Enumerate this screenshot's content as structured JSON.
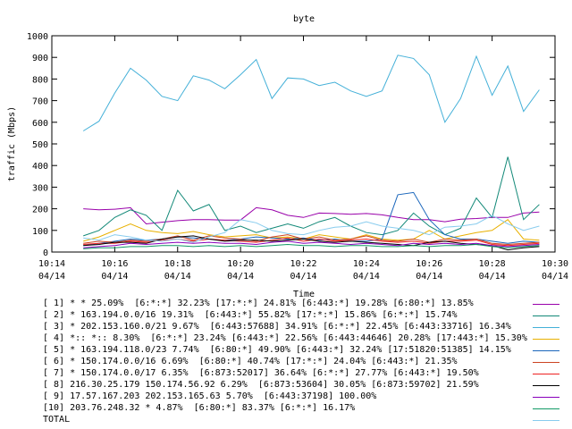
{
  "chart_data": {
    "type": "line",
    "title": "byte",
    "xlabel": "Time",
    "ylabel": "traffic (Mbps)",
    "ylim": [
      0,
      1000
    ],
    "yticks": [
      0,
      100,
      200,
      300,
      400,
      500,
      600,
      700,
      800,
      900,
      1000
    ],
    "xlim_minutes": [
      0,
      16
    ],
    "xticks": [
      {
        "minute": 0,
        "time": "10:14",
        "date": "04/14"
      },
      {
        "minute": 2,
        "time": "10:16",
        "date": "04/14"
      },
      {
        "minute": 4,
        "time": "10:18",
        "date": "04/14"
      },
      {
        "minute": 6,
        "time": "10:20",
        "date": "04/14"
      },
      {
        "minute": 8,
        "time": "10:22",
        "date": "04/14"
      },
      {
        "minute": 10,
        "time": "10:24",
        "date": "04/14"
      },
      {
        "minute": 12,
        "time": "10:26",
        "date": "04/14"
      },
      {
        "minute": 14,
        "time": "10:28",
        "date": "04/14"
      },
      {
        "minute": 16,
        "time": "10:30",
        "date": "04/14"
      }
    ],
    "x": [
      1,
      1.5,
      2,
      2.5,
      3,
      3.5,
      4,
      4.5,
      5,
      5.5,
      6,
      6.5,
      7,
      7.5,
      8,
      8.5,
      9,
      9.5,
      10,
      10.5,
      11,
      11.5,
      12,
      12.5,
      13,
      13.5,
      14,
      14.5,
      15,
      15.5
    ],
    "series": [
      {
        "name": "[ 1] * * 25.09%  [6:*:*] 32.23% [17:*:*] 24.81% [6:443:*] 19.28% [6:80:*] 13.85%",
        "color": "#9900aa",
        "values": [
          200,
          195,
          198,
          205,
          130,
          138,
          145,
          150,
          150,
          148,
          148,
          205,
          195,
          170,
          160,
          180,
          178,
          175,
          178,
          172,
          160,
          150,
          150,
          140,
          152,
          155,
          160,
          160,
          180,
          185
        ]
      },
      {
        "name": "[ 2] * 163.194.0.0/16 19.31%  [6:443:*] 55.82% [17:*:*] 15.86% [6:*:*] 15.74%",
        "color": "#118877",
        "values": [
          75,
          100,
          160,
          195,
          170,
          100,
          285,
          190,
          220,
          100,
          120,
          90,
          110,
          130,
          110,
          140,
          160,
          120,
          90,
          80,
          100,
          180,
          120,
          80,
          110,
          250,
          160,
          440,
          150,
          220
        ]
      },
      {
        "name": "[ 3] * 202.153.160.0/21 9.67%  [6:443:57688] 34.91% [6:*:*] 22.45% [6:443:33716] 16.34%",
        "color": "#44b0d8",
        "values": [
          560,
          605,
          735,
          850,
          795,
          720,
          700,
          815,
          795,
          755,
          820,
          890,
          710,
          805,
          800,
          770,
          785,
          745,
          720,
          745,
          910,
          895,
          820,
          600,
          710,
          905,
          725,
          860,
          650,
          750
        ]
      },
      {
        "name": "[ 4] *:: *:: 8.30%  [6:*:*] 23.24% [6:443:*] 22.56% [6:443:44646] 20.28% [17:443:*] 15.30%",
        "color": "#e8b000",
        "values": [
          50,
          70,
          100,
          130,
          100,
          90,
          85,
          95,
          80,
          70,
          75,
          80,
          65,
          70,
          60,
          80,
          70,
          60,
          80,
          60,
          55,
          60,
          100,
          60,
          75,
          90,
          100,
          150,
          60,
          55
        ]
      },
      {
        "name": "[ 5] * 163.194.118.0/23 7.74%  [6:80:*] 49.90% [6:443:*] 32.24% [17:51820:51385] 14.15%",
        "color": "#1a66bb",
        "values": [
          30,
          40,
          50,
          60,
          55,
          60,
          70,
          65,
          60,
          55,
          60,
          70,
          65,
          60,
          65,
          55,
          60,
          50,
          50,
          60,
          265,
          275,
          150,
          80,
          60,
          60,
          50,
          40,
          50,
          45
        ]
      },
      {
        "name": "[ 6] * 150.174.0.0/16 6.69%  [6:80:*] 40.74% [17:*:*] 24.04% [6:443:*] 21.35%",
        "color": "#cc4422",
        "values": [
          40,
          50,
          45,
          55,
          50,
          60,
          75,
          55,
          75,
          65,
          60,
          50,
          70,
          80,
          60,
          70,
          55,
          60,
          75,
          55,
          50,
          60,
          45,
          60,
          55,
          60,
          40,
          35,
          40,
          45
        ]
      },
      {
        "name": "[ 7] * 150.174.0.0/17 6.35%  [6:873:52017] 36.64% [6:*:*] 27.77% [6:443:*] 19.50%",
        "color": "#ee2222",
        "values": [
          35,
          40,
          40,
          50,
          45,
          55,
          60,
          50,
          60,
          55,
          50,
          45,
          55,
          65,
          50,
          60,
          50,
          55,
          60,
          50,
          45,
          50,
          40,
          50,
          50,
          55,
          35,
          30,
          35,
          40
        ]
      },
      {
        "name": "[ 8] 216.30.25.179 150.174.56.92 6.29%  [6:873:53604] 30.05% [6:873:59702] 21.59%",
        "color": "#000000",
        "values": [
          30,
          35,
          45,
          45,
          40,
          60,
          70,
          75,
          60,
          50,
          55,
          55,
          50,
          55,
          60,
          50,
          45,
          50,
          45,
          40,
          35,
          30,
          45,
          50,
          40,
          35,
          30,
          10,
          20,
          25
        ]
      },
      {
        "name": "[ 9] 17.57.167.203 202.153.165.63 5.70%  [6:443:37198] 100.00%",
        "color": "#8800bb",
        "values": [
          20,
          25,
          30,
          40,
          35,
          40,
          45,
          40,
          45,
          40,
          40,
          35,
          45,
          50,
          40,
          45,
          40,
          35,
          40,
          35,
          30,
          40,
          35,
          40,
          35,
          40,
          30,
          25,
          30,
          35
        ]
      },
      {
        "name": "[10] 203.76.248.32 * 4.87%  [6:80:*] 83.37% [6:*:*] 16.17%",
        "color": "#119966",
        "values": [
          15,
          20,
          20,
          25,
          25,
          30,
          30,
          25,
          30,
          25,
          30,
          25,
          30,
          35,
          30,
          30,
          25,
          30,
          30,
          25,
          25,
          30,
          25,
          30,
          30,
          35,
          25,
          20,
          25,
          30
        ]
      },
      {
        "name": "TOTAL",
        "color": "#88ccee",
        "values": [
          65,
          55,
          80,
          70,
          55,
          50,
          60,
          45,
          70,
          90,
          150,
          135,
          100,
          85,
          80,
          100,
          115,
          120,
          140,
          120,
          110,
          100,
          80,
          115,
          120,
          130,
          170,
          130,
          100,
          120
        ]
      }
    ]
  }
}
